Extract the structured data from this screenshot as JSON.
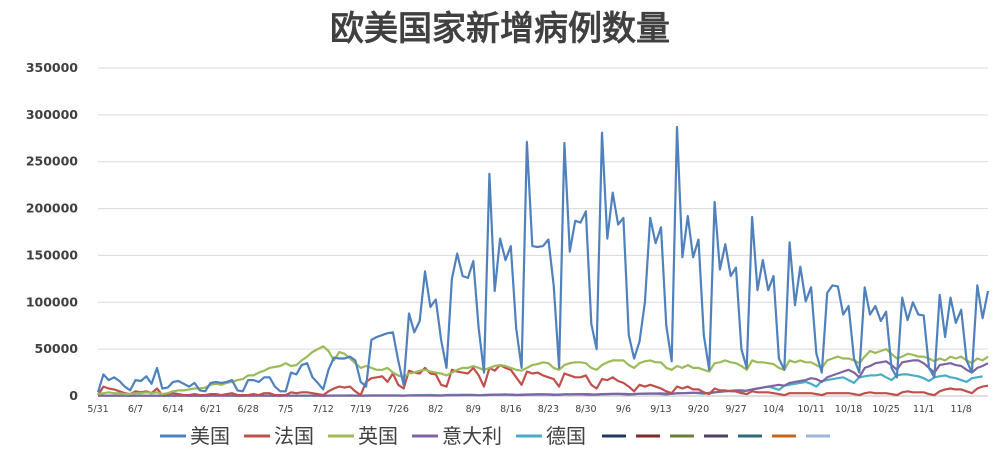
{
  "chart_data": {
    "type": "line",
    "title": "欧美国家新增病例数量",
    "xlabel": "",
    "ylabel": "",
    "ylim": [
      0,
      350000
    ],
    "yticks": [
      "0",
      "50000",
      "100000",
      "150000",
      "200000",
      "250000",
      "300000",
      "350000"
    ],
    "grid": true,
    "legend_position": "bottom",
    "x_tick_labels": [
      "5/31",
      "6/7",
      "6/14",
      "6/21",
      "6/28",
      "7/5",
      "7/12",
      "7/19",
      "7/26",
      "8/2",
      "8/9",
      "8/16",
      "8/23",
      "8/30",
      "9/6",
      "9/13",
      "9/20",
      "9/27",
      "10/4",
      "10/11",
      "10/18",
      "10/25",
      "11/1",
      "11/8"
    ],
    "series": [
      {
        "name": "美国",
        "color": "#4f81bd",
        "values": [
          4000,
          23000,
          17000,
          20000,
          16000,
          10000,
          6000,
          17000,
          16000,
          21000,
          13000,
          30000,
          8000,
          9000,
          15000,
          16000,
          13000,
          10000,
          14000,
          6000,
          5000,
          14000,
          15000,
          14000,
          15000,
          17000,
          6000,
          5000,
          17000,
          17000,
          15000,
          20000,
          20000,
          10000,
          5000,
          5000,
          25000,
          23000,
          33000,
          35000,
          20000,
          14000,
          7000,
          28000,
          41000,
          40000,
          40000,
          42000,
          38000,
          15000,
          10000,
          60000,
          63000,
          65000,
          67000,
          68000,
          38000,
          12000,
          88000,
          68000,
          80000,
          133000,
          95000,
          103000,
          60000,
          30000,
          125000,
          152000,
          128000,
          126000,
          144000,
          72000,
          25000,
          237000,
          112000,
          168000,
          145000,
          160000,
          72000,
          30000,
          271000,
          160000,
          159000,
          160000,
          167000,
          118000,
          30000,
          270000,
          154000,
          187000,
          185000,
          197000,
          77000,
          50000,
          281000,
          168000,
          217000,
          183000,
          190000,
          65000,
          40000,
          58000,
          100000,
          190000,
          163000,
          180000,
          75000,
          37000,
          287000,
          148000,
          192000,
          148000,
          167000,
          65000,
          28000,
          207000,
          135000,
          162000,
          128000,
          137000,
          50000,
          30000,
          191000,
          113000,
          145000,
          113000,
          128000,
          40000,
          28000,
          164000,
          97000,
          138000,
          101000,
          116000,
          45000,
          25000,
          110000,
          118000,
          117000,
          87000,
          96000,
          40000,
          25000,
          116000,
          87000,
          96000,
          80000,
          90000,
          30000,
          20000,
          105000,
          81000,
          100000,
          87000,
          86000,
          30000,
          20000,
          108000,
          63000,
          105000,
          78000,
          92000,
          38000,
          25000,
          118000,
          83000,
          112000
        ]
      },
      {
        "name": "法国",
        "color": "#c0504d",
        "values": [
          1000,
          10000,
          8000,
          7000,
          5000,
          3000,
          2000,
          5000,
          4000,
          5000,
          3000,
          8000,
          1000,
          2000,
          3000,
          2000,
          1000,
          1000,
          2000,
          1000,
          1000,
          2000,
          2000,
          1000,
          2000,
          3000,
          1000,
          1000,
          1000,
          2000,
          1000,
          3000,
          3000,
          1000,
          1000,
          1000,
          4000,
          3000,
          4000,
          4000,
          3000,
          2000,
          1000,
          5000,
          8000,
          10000,
          9000,
          10000,
          5000,
          1000,
          15000,
          19000,
          20000,
          21000,
          15000,
          24000,
          12000,
          8000,
          27000,
          25000,
          24000,
          30000,
          24000,
          23000,
          12000,
          10000,
          28000,
          26000,
          25000,
          24000,
          30000,
          22000,
          10000,
          30000,
          27000,
          33000,
          30000,
          28000,
          20000,
          12000,
          26000,
          24000,
          25000,
          22000,
          20000,
          18000,
          10000,
          24000,
          22000,
          20000,
          20000,
          22000,
          12000,
          8000,
          18000,
          17000,
          20000,
          16000,
          14000,
          10000,
          5000,
          12000,
          10000,
          12000,
          10000,
          8000,
          5000,
          3000,
          10000,
          8000,
          10000,
          7000,
          7000,
          4000,
          2000,
          8000,
          6000,
          6000,
          5000,
          5000,
          3000,
          2000,
          5000,
          4000,
          4000,
          4000,
          3000,
          2000,
          1000,
          3000,
          3000,
          3000,
          3000,
          3000,
          2000,
          1000,
          3000,
          3000,
          3000,
          3000,
          3000,
          2000,
          1000,
          3000,
          4000,
          3000,
          3000,
          3000,
          2000,
          1000,
          4000,
          5000,
          4000,
          4000,
          4000,
          2000,
          1000,
          5000,
          7000,
          8000,
          7000,
          7000,
          5000,
          3000,
          8000,
          10000,
          11000
        ]
      },
      {
        "name": "英国",
        "color": "#9bbb59",
        "values": [
          2000,
          3000,
          4000,
          3000,
          3000,
          2000,
          2000,
          3000,
          3000,
          4000,
          3000,
          4000,
          2000,
          3000,
          5000,
          6000,
          6000,
          7000,
          8000,
          8000,
          9000,
          12000,
          13000,
          12000,
          14000,
          15000,
          17000,
          18000,
          22000,
          22000,
          25000,
          27000,
          30000,
          31000,
          32000,
          35000,
          32000,
          33000,
          38000,
          42000,
          47000,
          50000,
          53000,
          48000,
          38000,
          47000,
          45000,
          40000,
          35000,
          30000,
          32000,
          30000,
          28000,
          28000,
          30000,
          25000,
          22000,
          20000,
          24000,
          25000,
          27000,
          28000,
          26000,
          25000,
          24000,
          22000,
          25000,
          28000,
          30000,
          30000,
          32000,
          30000,
          28000,
          30000,
          32000,
          33000,
          32000,
          30000,
          28000,
          27000,
          30000,
          33000,
          34000,
          36000,
          35000,
          30000,
          28000,
          33000,
          35000,
          36000,
          36000,
          35000,
          30000,
          28000,
          33000,
          36000,
          38000,
          38000,
          38000,
          33000,
          30000,
          35000,
          37000,
          38000,
          36000,
          36000,
          30000,
          28000,
          32000,
          30000,
          33000,
          30000,
          30000,
          28000,
          26000,
          35000,
          36000,
          38000,
          36000,
          35000,
          32000,
          28000,
          38000,
          36000,
          36000,
          35000,
          34000,
          30000,
          28000,
          38000,
          36000,
          38000,
          36000,
          36000,
          33000,
          30000,
          38000,
          40000,
          42000,
          40000,
          40000,
          38000,
          35000,
          42000,
          48000,
          46000,
          48000,
          50000,
          45000,
          40000,
          42000,
          45000,
          44000,
          42000,
          42000,
          40000,
          37000,
          40000,
          38000,
          42000,
          40000,
          42000,
          38000,
          35000,
          40000,
          38000,
          42000
        ]
      },
      {
        "name": "意大利",
        "color": "#8064a2",
        "values": [
          300,
          400,
          300,
          400,
          300,
          300,
          200,
          300,
          300,
          300,
          300,
          300,
          200,
          300,
          300,
          300,
          300,
          200,
          300,
          200,
          200,
          300,
          300,
          300,
          300,
          300,
          200,
          200,
          300,
          300,
          300,
          300,
          300,
          200,
          200,
          300,
          300,
          300,
          300,
          300,
          300,
          200,
          200,
          300,
          300,
          300,
          300,
          400,
          300,
          300,
          400,
          400,
          400,
          400,
          400,
          400,
          300,
          300,
          500,
          500,
          500,
          500,
          500,
          400,
          400,
          600,
          700,
          800,
          900,
          1000,
          1000,
          800,
          700,
          1200,
          1400,
          1500,
          1600,
          1500,
          1200,
          1100,
          1500,
          1600,
          1700,
          1700,
          1800,
          1500,
          1300,
          1800,
          1800,
          1900,
          1900,
          2000,
          1700,
          1500,
          2000,
          2100,
          2200,
          2200,
          2300,
          2000,
          1800,
          2500,
          2600,
          2700,
          2700,
          2800,
          2500,
          2200,
          3000,
          3000,
          3200,
          3300,
          3500,
          3000,
          2800,
          4000,
          4500,
          5000,
          5500,
          6000,
          6000,
          5500,
          7000,
          8000,
          9000,
          10000,
          11000,
          12000,
          11000,
          14000,
          15000,
          16000,
          17000,
          19000,
          18000,
          15000,
          20000,
          22000,
          24000,
          26000,
          28000,
          25000,
          20000,
          30000,
          32000,
          35000,
          36000,
          37000,
          33000,
          28000,
          36000,
          37000,
          38000,
          38000,
          35000,
          30000,
          25000,
          33000,
          34000,
          35000,
          33000,
          32000,
          28000,
          25000,
          30000,
          32000,
          35000
        ]
      },
      {
        "name": "德国",
        "color": "#4bacc6",
        "values": [
          200,
          300,
          400,
          300,
          300,
          300,
          200,
          300,
          300,
          300,
          300,
          300,
          200,
          200,
          300,
          300,
          300,
          200,
          300,
          200,
          200,
          300,
          300,
          300,
          300,
          300,
          200,
          200,
          300,
          300,
          300,
          300,
          300,
          200,
          200,
          300,
          300,
          300,
          400,
          400,
          400,
          300,
          200,
          400,
          500,
          500,
          500,
          600,
          500,
          300,
          500,
          600,
          600,
          700,
          700,
          800,
          600,
          400,
          800,
          900,
          1000,
          1000,
          1100,
          900,
          700,
          1100,
          1200,
          1300,
          1400,
          1400,
          1200,
          900,
          1300,
          1400,
          1500,
          1500,
          1600,
          1200,
          1000,
          1500,
          1600,
          1600,
          1700,
          1800,
          1400,
          1000,
          1600,
          1700,
          1800,
          1800,
          1900,
          1500,
          1100,
          1800,
          1900,
          2000,
          2100,
          2200,
          1800,
          1300,
          2200,
          2300,
          2400,
          2500,
          2600,
          2100,
          1600,
          2600,
          2800,
          3000,
          3200,
          3500,
          2900,
          2300,
          3500,
          4000,
          4500,
          5000,
          5500,
          4800,
          3800,
          6000,
          7000,
          8000,
          9000,
          10000,
          8500,
          6500,
          11000,
          12000,
          13000,
          14000,
          15000,
          13000,
          10000,
          16000,
          17000,
          18000,
          19000,
          20000,
          17000,
          14000,
          20000,
          21000,
          22000,
          22000,
          23000,
          20000,
          17000,
          22000,
          23000,
          23000,
          22000,
          21000,
          19000,
          16000,
          20000,
          21000,
          22000,
          20000,
          19000,
          17000,
          15000,
          19000,
          20000,
          21000
        ]
      }
    ],
    "legend_extra_colors": [
      "#1f3a5f",
      "#7f2a28",
      "#6a7d3a",
      "#4f3f63",
      "#2f6b7a",
      "#c8641e",
      "#9db7dc"
    ]
  }
}
